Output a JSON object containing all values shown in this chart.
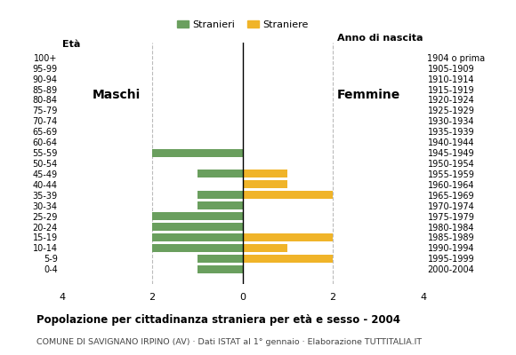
{
  "age_groups": [
    "100+",
    "95-99",
    "90-94",
    "85-89",
    "80-84",
    "75-79",
    "70-74",
    "65-69",
    "60-64",
    "55-59",
    "50-54",
    "45-49",
    "40-44",
    "35-39",
    "30-34",
    "25-29",
    "20-24",
    "15-19",
    "10-14",
    "5-9",
    "0-4"
  ],
  "birth_years": [
    "1904 o prima",
    "1905-1909",
    "1910-1914",
    "1915-1919",
    "1920-1924",
    "1925-1929",
    "1930-1934",
    "1935-1939",
    "1940-1944",
    "1945-1949",
    "1950-1954",
    "1955-1959",
    "1960-1964",
    "1965-1969",
    "1970-1974",
    "1975-1979",
    "1980-1984",
    "1985-1989",
    "1990-1994",
    "1995-1999",
    "2000-2004"
  ],
  "males": [
    0,
    0,
    0,
    0,
    0,
    0,
    0,
    0,
    0,
    2,
    0,
    1,
    0,
    1,
    1,
    2,
    2,
    2,
    2,
    1,
    1
  ],
  "females": [
    0,
    0,
    0,
    0,
    0,
    0,
    0,
    0,
    0,
    0,
    0,
    1,
    1,
    2,
    0,
    0,
    0,
    2,
    1,
    2,
    0
  ],
  "male_color": "#6a9f5e",
  "female_color": "#f0b429",
  "title": "Popolazione per cittadinanza straniera per età e sesso - 2004",
  "subtitle": "COMUNE DI SAVIGNANO IRPINO (AV) · Dati ISTAT al 1° gennaio · Elaborazione TUTTITALIA.IT",
  "legend_males": "Stranieri",
  "legend_females": "Straniere",
  "xlim": 4,
  "bar_height": 0.75,
  "bg_color": "#ffffff",
  "grid_color": "#bbbbbb",
  "label_eta": "Età",
  "label_anno": "Anno di nascita",
  "label_maschi": "Maschi",
  "label_femmine": "Femmine",
  "xticks": [
    -4,
    -2,
    0,
    2,
    4
  ],
  "xtick_labels": [
    "4",
    "2",
    "0",
    "2",
    "4"
  ]
}
